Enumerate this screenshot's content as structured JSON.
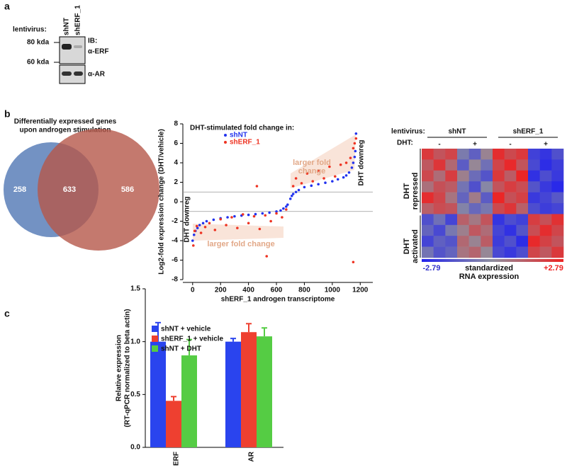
{
  "panel_labels": [
    "a",
    "b",
    "c"
  ],
  "panel_a": {
    "lentivirus_label": "lentivirus:",
    "lanes": [
      "shNT",
      "shERF_1"
    ],
    "markers": [
      "80 kda",
      "60 kda"
    ],
    "ib_label": "IB:",
    "antibodies": [
      "α-ERF",
      "α-AR"
    ]
  },
  "chart_data": [
    {
      "type": "venn",
      "title": [
        "Differentially expressed genes",
        "upon androgen stimulation"
      ],
      "values": [
        258,
        633,
        586
      ],
      "colors": [
        "#5b7fb8",
        "#b5584a"
      ]
    },
    {
      "type": "scatter",
      "legend_title": "DHT-stimulated fold change in:",
      "xlabel": "shERF_1 androgen transcriptome",
      "ylabel": "Log2-fold expression change (DHT/vehicle)",
      "xlim": [
        -70,
        1290
      ],
      "ylim": [
        -8,
        8
      ],
      "xticks": [
        0,
        200,
        400,
        600,
        800,
        1000,
        1200
      ],
      "yticks": [
        -8,
        -6,
        -4,
        -2,
        0,
        2,
        4,
        6,
        8
      ],
      "reference_lines": [
        1,
        -1
      ],
      "annotations": [
        "larger fold change",
        "larger fold",
        "change",
        "DHT downreg",
        "DHT downreg"
      ],
      "series": [
        {
          "name": "shNT",
          "color": "#2233ee",
          "x": [
            0,
            10,
            20,
            35,
            50,
            75,
            100,
            150,
            200,
            250,
            300,
            350,
            400,
            450,
            500,
            550,
            600,
            630,
            650,
            670,
            680,
            700,
            710,
            720,
            740,
            760,
            800,
            850,
            900,
            950,
            1000,
            1040,
            1080,
            1100,
            1120,
            1140,
            1150,
            1160,
            1165,
            1170
          ],
          "y": [
            -4,
            -3.4,
            -3,
            -2.7,
            -2.4,
            -2.2,
            -2,
            -1.85,
            -1.7,
            -1.6,
            -1.5,
            -1.42,
            -1.35,
            -1.28,
            -1.2,
            -1.12,
            -1,
            -0.9,
            -0.7,
            -0.5,
            -0.3,
            0.3,
            0.6,
            0.8,
            1,
            1.2,
            1.5,
            1.65,
            1.8,
            1.95,
            2.1,
            2.3,
            2.5,
            2.7,
            3,
            3.5,
            4,
            4.6,
            5.2,
            7
          ]
        },
        {
          "name": "shERF_1",
          "color": "#ee3322",
          "x": [
            5,
            15,
            30,
            60,
            90,
            120,
            160,
            200,
            240,
            280,
            320,
            360,
            400,
            440,
            480,
            520,
            560,
            600,
            640,
            670,
            720,
            740,
            780,
            820,
            860,
            900,
            940,
            980,
            1020,
            1060,
            1100,
            1130,
            1150,
            1160,
            1170,
            460,
            1150,
            530
          ],
          "y": [
            -4.5,
            -3,
            -2.5,
            -3.2,
            -2.6,
            -2.2,
            -2.9,
            -1.8,
            -2.4,
            -1.6,
            -2.7,
            -1.3,
            -2.2,
            -1.5,
            -2.8,
            -1.4,
            -2,
            -1.2,
            -1.6,
            -0.8,
            1.6,
            2.4,
            1.9,
            2.9,
            2.1,
            3.2,
            2.4,
            3.6,
            2.6,
            3.8,
            4,
            4.5,
            5.5,
            6,
            6.5,
            1.6,
            -6.2,
            -5.6
          ]
        }
      ]
    },
    {
      "type": "heatmap",
      "header_labels": [
        "lentivirus:",
        "DHT:"
      ],
      "groups": [
        "shNT",
        "shERF_1"
      ],
      "conditions": [
        "-",
        "+",
        "-",
        "+"
      ],
      "row_labels": [
        "DHT",
        "repressed",
        "DHT",
        "activated"
      ],
      "clim": [
        -2.79,
        2.79
      ],
      "colors": [
        "#2222ee",
        "#8f8f9f",
        "#ee2222"
      ],
      "colorbar_ticks": [
        -2.79,
        {
          "value": 2.79,
          "label": "+2.79"
        }
      ],
      "colorbar_label": [
        "standardized",
        "RNA expression"
      ],
      "matrix": [
        [
          2.2,
          1.5,
          1.9,
          -0.5,
          -1.2,
          0.3,
          2.5,
          1.8,
          2.2,
          -2.0,
          -2.3,
          -1.6
        ],
        [
          1.4,
          2.3,
          1.0,
          -1.3,
          0.2,
          -0.8,
          1.9,
          2.6,
          1.5,
          -1.8,
          -2.5,
          -2.1
        ],
        [
          1.8,
          0.9,
          2.1,
          0.4,
          -0.9,
          -1.5,
          2.2,
          1.3,
          2.7,
          -2.4,
          -1.7,
          -2.2
        ],
        [
          0.8,
          1.6,
          1.3,
          -0.7,
          -1.6,
          -0.2,
          1.5,
          2.1,
          1.7,
          -1.5,
          -2.2,
          -2.6
        ],
        [
          2.5,
          1.9,
          0.7,
          -1.1,
          0.5,
          -1.3,
          2.7,
          1.6,
          2.0,
          -2.2,
          -1.9,
          -1.4
        ],
        [
          1.2,
          1.7,
          1.5,
          -0.3,
          -1.0,
          -0.6,
          1.8,
          2.3,
          1.2,
          -1.7,
          -2.1,
          -1.9
        ],
        [
          -1.6,
          -0.8,
          -1.9,
          1.2,
          0.6,
          1.5,
          -2.3,
          -1.7,
          -2.0,
          2.1,
          1.6,
          2.4
        ],
        [
          -1.1,
          -1.8,
          -0.6,
          0.4,
          1.4,
          0.9,
          -1.9,
          -2.4,
          -1.5,
          1.7,
          2.5,
          1.9
        ],
        [
          -1.9,
          -1.2,
          -1.5,
          1.0,
          0.3,
          1.3,
          -2.1,
          -1.6,
          -2.5,
          2.6,
          2.0,
          1.5
        ],
        [
          -0.7,
          -1.5,
          -1.1,
          0.7,
          1.1,
          0.2,
          -1.8,
          -2.2,
          -1.7,
          1.9,
          1.4,
          2.2
        ]
      ]
    },
    {
      "type": "bar",
      "ylabel": [
        "Relative expression",
        "(RT-qPCR normalized to beta actin)"
      ],
      "categories": [
        "ERF",
        "AR"
      ],
      "ylim": [
        0,
        1.5
      ],
      "yticks": [
        {
          "value": 0,
          "label": "0.0"
        },
        {
          "value": 0.5,
          "label": "0.5"
        },
        {
          "value": 1,
          "label": "1.0"
        },
        {
          "value": 1.5,
          "label": "1.5"
        }
      ],
      "series": [
        {
          "name": "shNT + vehicle",
          "color": "#2a44ee",
          "values": [
            1.0,
            1.0
          ],
          "errors": [
            0.18,
            0.03
          ]
        },
        {
          "name": "shERF_1 + vehicle",
          "color": "#ee4030",
          "values": [
            0.44,
            1.09
          ],
          "errors": [
            0.04,
            0.08
          ]
        },
        {
          "name": "shNT + DHT",
          "color": "#55cc44",
          "values": [
            0.87,
            1.05
          ],
          "errors": [
            0.15,
            0.08
          ]
        }
      ]
    }
  ]
}
